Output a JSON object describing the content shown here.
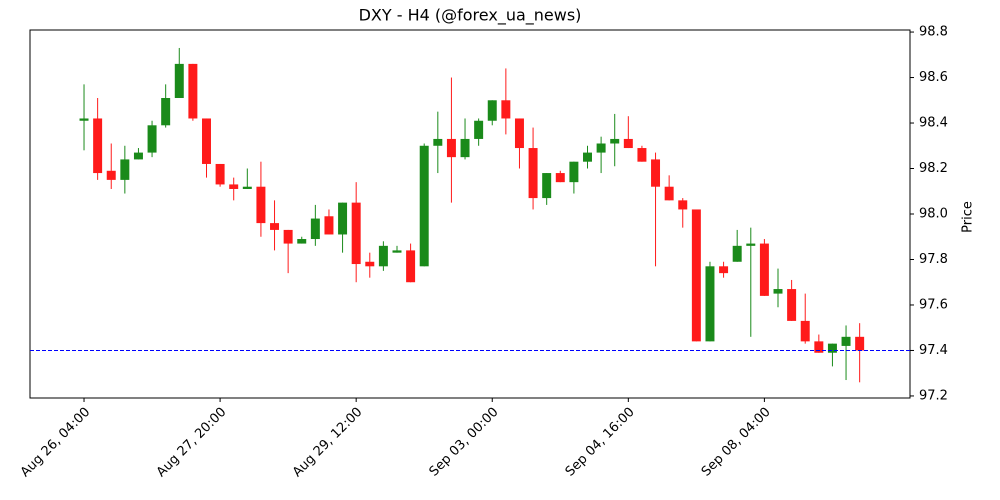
{
  "chart_data": {
    "type": "candlestick",
    "title": "DXY - H4 (@forex_ua_news)",
    "y_label": "Price",
    "categories": [
      "Aug 26, 04:00",
      null,
      null,
      null,
      null,
      null,
      null,
      null,
      null,
      null,
      "Aug 27, 20:00",
      null,
      null,
      null,
      null,
      null,
      null,
      null,
      null,
      null,
      "Aug 29, 12:00",
      null,
      null,
      null,
      null,
      null,
      null,
      null,
      null,
      null,
      "Sep 03, 00:00",
      null,
      null,
      null,
      null,
      null,
      null,
      null,
      null,
      null,
      "Sep 04, 16:00",
      null,
      null,
      null,
      null,
      null,
      null,
      null,
      null,
      null,
      "Sep 08, 04:00",
      null,
      null,
      null,
      null,
      null,
      null,
      null
    ],
    "open": [
      98.41,
      98.42,
      98.19,
      98.15,
      98.24,
      98.27,
      98.39,
      98.51,
      98.66,
      98.42,
      98.22,
      98.13,
      98.11,
      98.12,
      97.96,
      97.93,
      97.87,
      97.89,
      97.99,
      97.91,
      98.05,
      97.79,
      97.77,
      97.83,
      97.84,
      97.77,
      98.3,
      98.33,
      98.25,
      98.33,
      98.41,
      98.5,
      98.42,
      98.29,
      98.07,
      98.18,
      98.14,
      98.23,
      98.27,
      98.31,
      98.33,
      98.29,
      98.24,
      98.12,
      98.06,
      98.02,
      97.44,
      97.77,
      97.79,
      97.86,
      97.87,
      97.65,
      97.67,
      97.53,
      97.44,
      97.39,
      97.42,
      97.46
    ],
    "high": [
      98.57,
      98.51,
      98.31,
      98.3,
      98.29,
      98.41,
      98.57,
      98.73,
      98.66,
      98.42,
      98.22,
      98.16,
      98.2,
      98.23,
      98.06,
      97.93,
      97.9,
      98.04,
      98.02,
      98.05,
      98.14,
      97.83,
      97.88,
      97.86,
      97.87,
      98.31,
      98.45,
      98.6,
      98.42,
      98.42,
      98.5,
      98.64,
      98.42,
      98.38,
      98.18,
      98.19,
      98.23,
      98.3,
      98.34,
      98.44,
      98.43,
      98.3,
      98.27,
      98.17,
      98.07,
      98.02,
      97.79,
      97.79,
      97.93,
      97.94,
      97.89,
      97.76,
      97.71,
      97.65,
      97.47,
      97.43,
      97.51,
      97.52
    ],
    "low": [
      98.28,
      98.15,
      98.11,
      98.09,
      98.24,
      98.25,
      98.38,
      98.51,
      98.41,
      98.16,
      98.12,
      98.06,
      98.11,
      97.9,
      97.84,
      97.74,
      97.87,
      97.86,
      97.91,
      97.83,
      97.7,
      97.72,
      97.75,
      97.83,
      97.7,
      97.77,
      98.18,
      98.05,
      98.24,
      98.3,
      98.39,
      98.35,
      98.2,
      98.02,
      98.04,
      98.14,
      98.09,
      98.2,
      98.18,
      98.21,
      98.29,
      98.23,
      97.77,
      98.06,
      97.94,
      97.44,
      97.44,
      97.72,
      97.79,
      97.46,
      97.64,
      97.59,
      97.53,
      97.43,
      97.39,
      97.33,
      97.27,
      97.26
    ],
    "close": [
      98.42,
      98.18,
      98.15,
      98.24,
      98.27,
      98.39,
      98.51,
      98.66,
      98.42,
      98.22,
      98.13,
      98.11,
      98.12,
      97.96,
      97.93,
      97.87,
      97.89,
      97.98,
      97.91,
      98.05,
      97.78,
      97.77,
      97.86,
      97.84,
      97.7,
      98.3,
      98.33,
      98.25,
      98.33,
      98.41,
      98.5,
      98.42,
      98.29,
      98.07,
      98.18,
      98.14,
      98.23,
      98.27,
      98.31,
      98.33,
      98.29,
      98.23,
      98.12,
      98.06,
      98.02,
      97.44,
      97.77,
      97.74,
      97.86,
      97.87,
      97.64,
      97.67,
      97.53,
      97.44,
      97.39,
      97.43,
      97.46,
      97.4
    ],
    "up_color": "#1a8a1a",
    "down_color": "#ff1a1a",
    "hline": 97.4,
    "hline_color": "#0000ff",
    "xlim": [
      -3.97,
      60.7
    ],
    "ylim": [
      97.191,
      98.809
    ],
    "yticks": [
      {
        "value": 97.2,
        "label": "97.2"
      },
      {
        "value": 97.4,
        "label": "97.4"
      },
      {
        "value": 97.6,
        "label": "97.6"
      },
      {
        "value": 97.8,
        "label": "97.8"
      },
      {
        "value": 98.0,
        "label": "98.0"
      },
      {
        "value": 98.2,
        "label": "98.2"
      },
      {
        "value": 98.4,
        "label": "98.4"
      },
      {
        "value": 98.6,
        "label": "98.6"
      },
      {
        "value": 98.8,
        "label": "98.8"
      }
    ]
  }
}
